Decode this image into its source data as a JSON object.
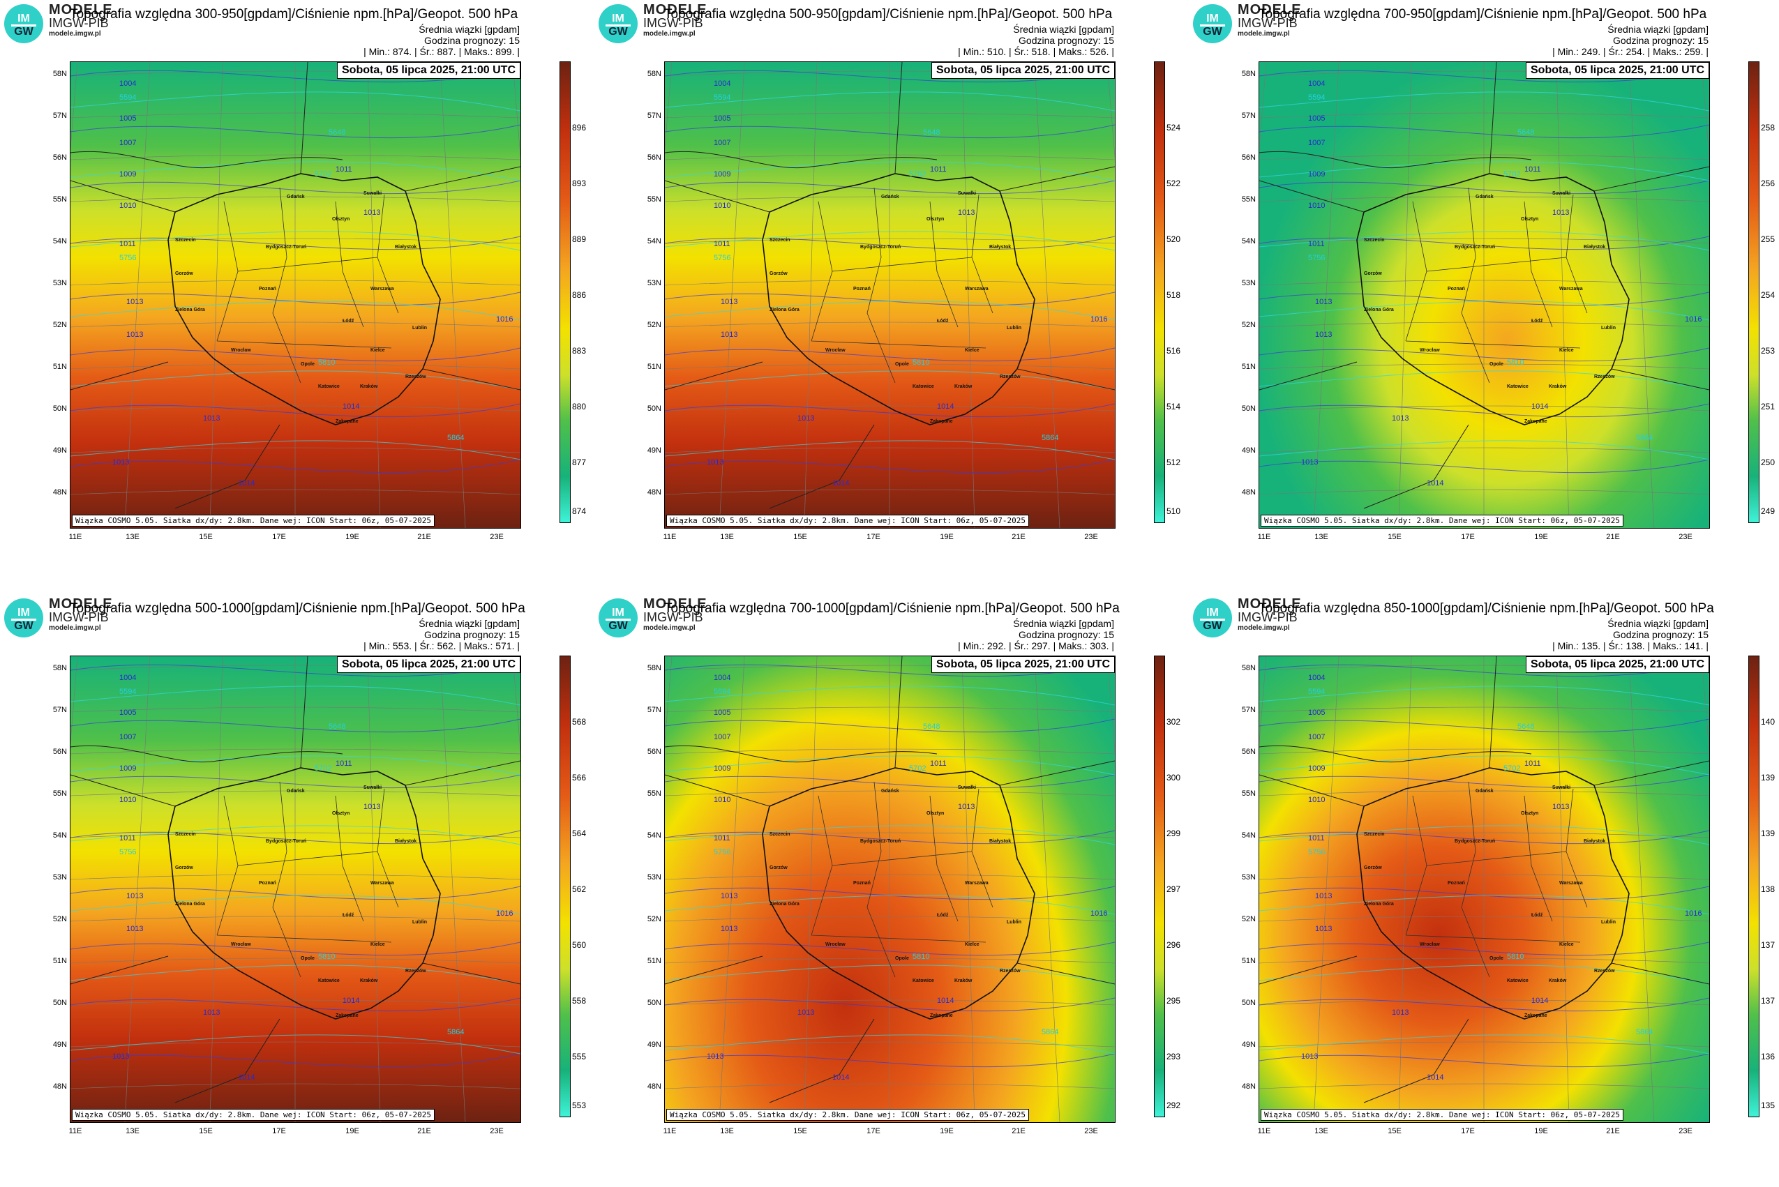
{
  "logo": {
    "line1": "MODELE",
    "line2": "IMGW-PIB",
    "line3": "modele.imgw.pl",
    "badge_top": "IM",
    "badge_bottom": "GW"
  },
  "common": {
    "mean_label": "Średnia wiązki [gpdam]",
    "forecast_hour": "Godzina prognozy: 15",
    "date": "Sobota, 05 lipca 2025, 21:00 UTC",
    "footer": "Wiązka COSMO 5.05. Siatka dx/dy: 2.8km. Dane wej: ICON Start: 06z, 05-07-2025",
    "lat_labels": [
      "58N",
      "57N",
      "56N",
      "55N",
      "54N",
      "53N",
      "52N",
      "51N",
      "50N",
      "49N",
      "48N"
    ],
    "lon_labels": [
      "11E",
      "13E",
      "15E",
      "17E",
      "19E",
      "21E",
      "23E"
    ],
    "cities": [
      "Gdańsk",
      "Suwałki",
      "Olsztyn",
      "Szczecin",
      "Bydgoszcz-Toruń",
      "Białystok",
      "Gorzów",
      "Poznań",
      "Warszawa",
      "Zielona Góra",
      "Łódź",
      "Lublin",
      "Wrocław",
      "Kielce",
      "Opole",
      "Rzeszów",
      "Katowice",
      "Kraków",
      "Zakopane"
    ],
    "isobars": [
      "1004",
      "1005",
      "1007",
      "1009",
      "1010",
      "1011",
      "1013",
      "1014",
      "1016",
      "1013",
      "1013",
      "1014",
      "1011",
      "1013",
      "1013"
    ],
    "geopot": [
      "5594",
      "5648",
      "5702",
      "5756",
      "5810",
      "5864"
    ],
    "colors": {
      "c1": "#3ff2d8",
      "c2": "#17b27a",
      "c3": "#4fc04a",
      "c4": "#cde02a",
      "c5": "#f3e100",
      "c6": "#f4a520",
      "c7": "#e45a16",
      "c8": "#c2300e",
      "c9": "#6d2212"
    }
  },
  "panels": [
    {
      "title": "Topografia względna 300-950[gpdam]/Ciśnienie npm.[hPa]/Geopot. 500 hPa",
      "stats": "| Min.: 874. | Śr.: 887. | Maks.: 899. |",
      "scale": [
        "896",
        "893",
        "889",
        "886",
        "883",
        "880",
        "877",
        "874"
      ],
      "variant": "a"
    },
    {
      "title": "Topografia względna 500-950[gpdam]/Ciśnienie npm.[hPa]/Geopot. 500 hPa",
      "stats": "| Min.: 510. | Śr.: 518. | Maks.: 526. |",
      "scale": [
        "524",
        "522",
        "520",
        "518",
        "516",
        "514",
        "512",
        "510"
      ],
      "variant": "a"
    },
    {
      "title": "Topografia względna 700-950[gpdam]/Ciśnienie npm.[hPa]/Geopot. 500 hPa",
      "stats": "| Min.: 249. | Śr.: 254. | Maks.: 259. |",
      "scale": [
        "258",
        "256",
        "255",
        "254",
        "253",
        "251",
        "250",
        "249"
      ],
      "variant": "b"
    },
    {
      "title": "Topografia względna 500-1000[gpdam]/Ciśnienie npm.[hPa]/Geopot. 500 hPa",
      "stats": "| Min.: 553. | Śr.: 562. | Maks.: 571. |",
      "scale": [
        "568",
        "566",
        "564",
        "562",
        "560",
        "558",
        "555",
        "553"
      ],
      "variant": "a"
    },
    {
      "title": "Topografia względna 700-1000[gpdam]/Ciśnienie npm.[hPa]/Geopot. 500 hPa",
      "stats": "| Min.: 292. | Śr.: 297. | Maks.: 303. |",
      "scale": [
        "302",
        "300",
        "299",
        "297",
        "296",
        "295",
        "293",
        "292"
      ],
      "variant": "c"
    },
    {
      "title": "Topografia względna 850-1000[gpdam]/Ciśnienie npm.[hPa]/Geopot. 500 hPa",
      "stats": "| Min.: 135. | Śr.: 138. | Maks.: 141. |",
      "scale": [
        "140",
        "139",
        "139",
        "138",
        "137",
        "137",
        "136",
        "135"
      ],
      "variant": "d"
    }
  ]
}
